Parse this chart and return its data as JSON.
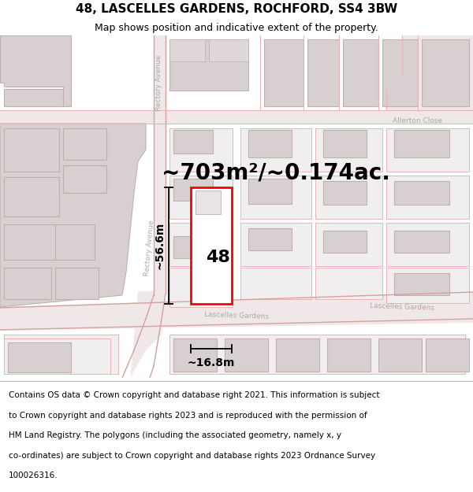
{
  "title": "48, LASCELLES GARDENS, ROCHFORD, SS4 3BW",
  "subtitle": "Map shows position and indicative extent of the property.",
  "area_text": "~703m²/~0.174ac.",
  "width_label": "~16.8m",
  "height_label": "~56.6m",
  "number_label": "48",
  "footer_lines": [
    "Contains OS data © Crown copyright and database right 2021. This information is subject",
    "to Crown copyright and database rights 2023 and is reproduced with the permission of",
    "HM Land Registry. The polygons (including the associated geometry, namely x, y",
    "co-ordinates) are subject to Crown copyright and database rights 2023 Ordnance Survey",
    "100026316."
  ],
  "bg_color": "#ffffff",
  "map_bg": "#ffffff",
  "road_line_color": "#e8b4b4",
  "road_line_color2": "#d4a0a0",
  "building_fill": "#d8d0d0",
  "building_edge": "#c0b0b0",
  "highlight_fill": "#ffffff",
  "highlight_edge": "#ff0000",
  "highlight_edge_width": 2.0,
  "label_color": "#aaaaaa",
  "title_fontsize": 11,
  "subtitle_fontsize": 9,
  "area_fontsize": 20,
  "number_fontsize": 16,
  "dim_fontsize": 10,
  "footer_fontsize": 7.5
}
